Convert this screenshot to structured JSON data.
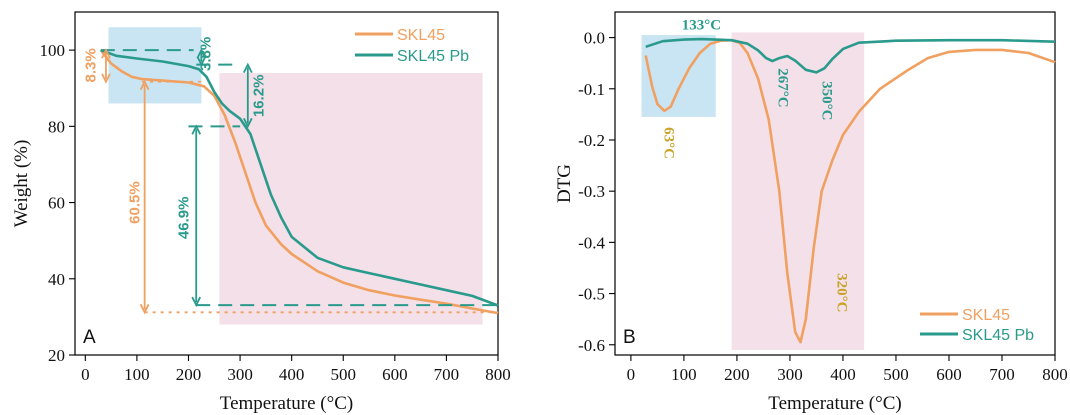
{
  "colors": {
    "SKL45": "#f0a060",
    "SKL45_light": "#d8a27c",
    "SKL45_Pb": "#2a9a8c",
    "peak_gold": "#c9a227",
    "blue_region": "#bfe0f2",
    "pink_region": "#f0d8e2"
  },
  "chart_data": [
    {
      "panel": "A",
      "type": "line",
      "xlabel": "Temperature (°C)",
      "ylabel": "Weight (%)",
      "xlim": [
        -20,
        800
      ],
      "ylim": [
        20,
        110
      ],
      "x_ticks": [
        "0",
        "100",
        "200",
        "300",
        "400",
        "500",
        "600",
        "700",
        "800"
      ],
      "y_ticks": [
        "20",
        "40",
        "60",
        "80",
        "100"
      ],
      "legend": {
        "position": "top-right",
        "entries": [
          "SKL45",
          "SKL45 Pb"
        ]
      },
      "regions": [
        {
          "color": "blue",
          "x": [
            45,
            225
          ],
          "y": [
            86,
            106
          ]
        },
        {
          "color": "pink",
          "x": [
            260,
            770
          ],
          "y": [
            28,
            94
          ]
        }
      ],
      "series": [
        {
          "name": "SKL45",
          "points": [
            [
              30,
              100
            ],
            [
              50,
              96.5
            ],
            [
              70,
              94.5
            ],
            [
              90,
              93
            ],
            [
              110,
              92.4
            ],
            [
              150,
              92
            ],
            [
              200,
              91.5
            ],
            [
              230,
              90.5
            ],
            [
              250,
              88
            ],
            [
              270,
              83
            ],
            [
              290,
              76
            ],
            [
              310,
              68
            ],
            [
              330,
              60
            ],
            [
              350,
              54
            ],
            [
              380,
              49
            ],
            [
              400,
              46.5
            ],
            [
              450,
              42
            ],
            [
              500,
              39
            ],
            [
              550,
              37
            ],
            [
              600,
              35.6
            ],
            [
              650,
              34.5
            ],
            [
              700,
              33.5
            ],
            [
              750,
              32.2
            ],
            [
              800,
              31
            ]
          ]
        },
        {
          "name": "SKL45 Pb",
          "points": [
            [
              30,
              100
            ],
            [
              60,
              98.5
            ],
            [
              100,
              97.8
            ],
            [
              150,
              97
            ],
            [
              200,
              95.8
            ],
            [
              220,
              95
            ],
            [
              235,
              93
            ],
            [
              250,
              89
            ],
            [
              265,
              86
            ],
            [
              280,
              84
            ],
            [
              300,
              82
            ],
            [
              320,
              78
            ],
            [
              340,
              70
            ],
            [
              360,
              62
            ],
            [
              380,
              56
            ],
            [
              400,
              51
            ],
            [
              450,
              45.5
            ],
            [
              500,
              43
            ],
            [
              550,
              41.5
            ],
            [
              600,
              40
            ],
            [
              650,
              38.5
            ],
            [
              700,
              37
            ],
            [
              750,
              35.5
            ],
            [
              800,
              33
            ]
          ]
        }
      ],
      "annotations": [
        {
          "text": "8.3%",
          "series": "SKL45",
          "from_y": 100,
          "to_y": 91.7
        },
        {
          "text": "60.5%",
          "series": "SKL45",
          "from_y": 91.7,
          "to_y": 31.2
        },
        {
          "text": "3.8%",
          "series": "SKL45 Pb",
          "from_y": 100,
          "to_y": 96.2
        },
        {
          "text": "16.2%",
          "series": "SKL45 Pb",
          "from_y": 96.2,
          "to_y": 80
        },
        {
          "text": "46.9%",
          "series": "SKL45 Pb",
          "from_y": 80,
          "to_y": 33.1
        }
      ],
      "panel_label": "A"
    },
    {
      "panel": "B",
      "type": "line",
      "xlabel": "Temperature (°C)",
      "ylabel": "DTG",
      "xlim": [
        -30,
        800
      ],
      "ylim": [
        -0.62,
        0.05
      ],
      "x_ticks": [
        "0",
        "100",
        "200",
        "300",
        "400",
        "500",
        "600",
        "700",
        "800"
      ],
      "y_ticks": [
        "0.0",
        "-0.1",
        "-0.2",
        "-0.3",
        "-0.4",
        "-0.5",
        "-0.6"
      ],
      "legend": {
        "position": "bottom-right",
        "entries": [
          "SKL45",
          "SKL45 Pb"
        ]
      },
      "regions": [
        {
          "color": "blue",
          "x": [
            20,
            160
          ],
          "y": [
            -0.155,
            0.005
          ]
        },
        {
          "color": "pink",
          "x": [
            190,
            440
          ],
          "y": [
            -0.61,
            0.01
          ]
        }
      ],
      "series": [
        {
          "name": "SKL45",
          "points": [
            [
              28,
              -0.035
            ],
            [
              40,
              -0.095
            ],
            [
              50,
              -0.13
            ],
            [
              63,
              -0.143
            ],
            [
              75,
              -0.135
            ],
            [
              90,
              -0.1
            ],
            [
              110,
              -0.06
            ],
            [
              130,
              -0.03
            ],
            [
              150,
              -0.012
            ],
            [
              170,
              -0.006
            ],
            [
              190,
              -0.005
            ],
            [
              205,
              -0.01
            ],
            [
              220,
              -0.03
            ],
            [
              240,
              -0.08
            ],
            [
              260,
              -0.16
            ],
            [
              280,
              -0.3
            ],
            [
              295,
              -0.46
            ],
            [
              310,
              -0.575
            ],
            [
              320,
              -0.595
            ],
            [
              330,
              -0.55
            ],
            [
              345,
              -0.41
            ],
            [
              360,
              -0.3
            ],
            [
              380,
              -0.24
            ],
            [
              400,
              -0.19
            ],
            [
              430,
              -0.145
            ],
            [
              470,
              -0.1
            ],
            [
              520,
              -0.065
            ],
            [
              560,
              -0.04
            ],
            [
              600,
              -0.028
            ],
            [
              650,
              -0.024
            ],
            [
              700,
              -0.024
            ],
            [
              750,
              -0.03
            ],
            [
              800,
              -0.048
            ]
          ]
        },
        {
          "name": "SKL45 Pb",
          "points": [
            [
              28,
              -0.018
            ],
            [
              60,
              -0.007
            ],
            [
              100,
              -0.004
            ],
            [
              133,
              -0.003
            ],
            [
              160,
              -0.004
            ],
            [
              190,
              -0.005
            ],
            [
              220,
              -0.012
            ],
            [
              240,
              -0.025
            ],
            [
              255,
              -0.04
            ],
            [
              267,
              -0.046
            ],
            [
              280,
              -0.04
            ],
            [
              295,
              -0.036
            ],
            [
              310,
              -0.045
            ],
            [
              330,
              -0.063
            ],
            [
              350,
              -0.068
            ],
            [
              365,
              -0.06
            ],
            [
              380,
              -0.042
            ],
            [
              400,
              -0.022
            ],
            [
              430,
              -0.01
            ],
            [
              500,
              -0.006
            ],
            [
              600,
              -0.005
            ],
            [
              700,
              -0.005
            ],
            [
              800,
              -0.008
            ]
          ]
        }
      ],
      "peak_labels": [
        {
          "text": "133°C",
          "series": "SKL45 Pb",
          "x": 133
        },
        {
          "text": "63°C",
          "series": "SKL45",
          "x": 63
        },
        {
          "text": "267°C",
          "series": "SKL45 Pb",
          "x": 267
        },
        {
          "text": "350°C",
          "series": "SKL45 Pb",
          "x": 350
        },
        {
          "text": "320°C",
          "series": "SKL45",
          "x": 320
        }
      ],
      "panel_label": "B"
    }
  ]
}
